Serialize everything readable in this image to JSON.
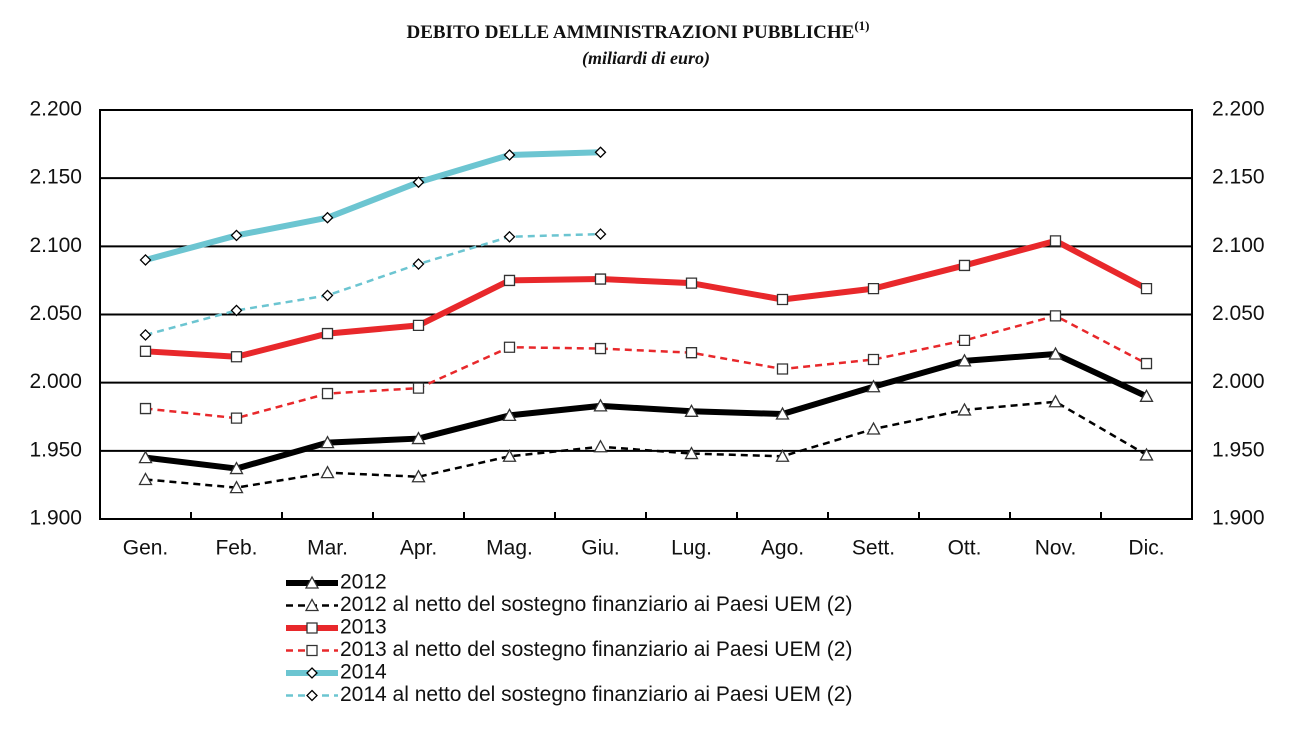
{
  "chart_data": {
    "type": "line",
    "title": "DEBITO DELLE AMMINISTRAZIONI PUBBLICHE",
    "title_note": "(1)",
    "subtitle": "(miliardi di euro)",
    "categories": [
      "Gen.",
      "Feb.",
      "Mar.",
      "Apr.",
      "Mag.",
      "Giu.",
      "Lug.",
      "Ago.",
      "Sett.",
      "Ott.",
      "Nov.",
      "Dic."
    ],
    "ylim": [
      1900,
      2200
    ],
    "yticks": [
      {
        "value": 1900,
        "label": "1.900"
      },
      {
        "value": 1950,
        "label": "1.950"
      },
      {
        "value": 2000,
        "label": "2.000"
      },
      {
        "value": 2050,
        "label": "2.050"
      },
      {
        "value": 2100,
        "label": "2.100"
      },
      {
        "value": 2150,
        "label": "2.150"
      },
      {
        "value": 2200,
        "label": "2.200"
      }
    ],
    "grid": true,
    "series": [
      {
        "name": "2012",
        "color": "#000000",
        "style": "solid",
        "marker": "triangle",
        "values": [
          1945,
          1937,
          1956,
          1959,
          1976,
          1983,
          1979,
          1977,
          1997,
          2016,
          2021,
          1990
        ]
      },
      {
        "name": "2012 al netto del sostegno finanziario ai Paesi UEM (2)",
        "color": "#000000",
        "style": "dashed",
        "marker": "triangle",
        "values": [
          1929,
          1923,
          1934,
          1931,
          1946,
          1953,
          1948,
          1946,
          1966,
          1980,
          1986,
          1947
        ]
      },
      {
        "name": "2013",
        "color": "#e8282b",
        "style": "solid",
        "marker": "square",
        "values": [
          2023,
          2019,
          2036,
          2042,
          2075,
          2076,
          2073,
          2061,
          2069,
          2086,
          2104,
          2069
        ]
      },
      {
        "name": "2013 al netto del sostegno finanziario ai Paesi UEM (2)",
        "color": "#e8282b",
        "style": "dashed",
        "marker": "square",
        "values": [
          1981,
          1974,
          1992,
          1996,
          2026,
          2025,
          2022,
          2010,
          2017,
          2031,
          2049,
          2014
        ]
      },
      {
        "name": "2014",
        "color": "#6cc5d1",
        "style": "solid",
        "marker": "diamond",
        "values": [
          2090,
          2108,
          2121,
          2147,
          2167,
          2169,
          null,
          null,
          null,
          null,
          null,
          null
        ]
      },
      {
        "name": "2014 al netto del sostegno finanziario ai Paesi UEM (2)",
        "color": "#6cc5d1",
        "style": "dashed",
        "marker": "diamond",
        "values": [
          2035,
          2053,
          2064,
          2087,
          2107,
          2109,
          null,
          null,
          null,
          null,
          null,
          null
        ]
      }
    ]
  }
}
